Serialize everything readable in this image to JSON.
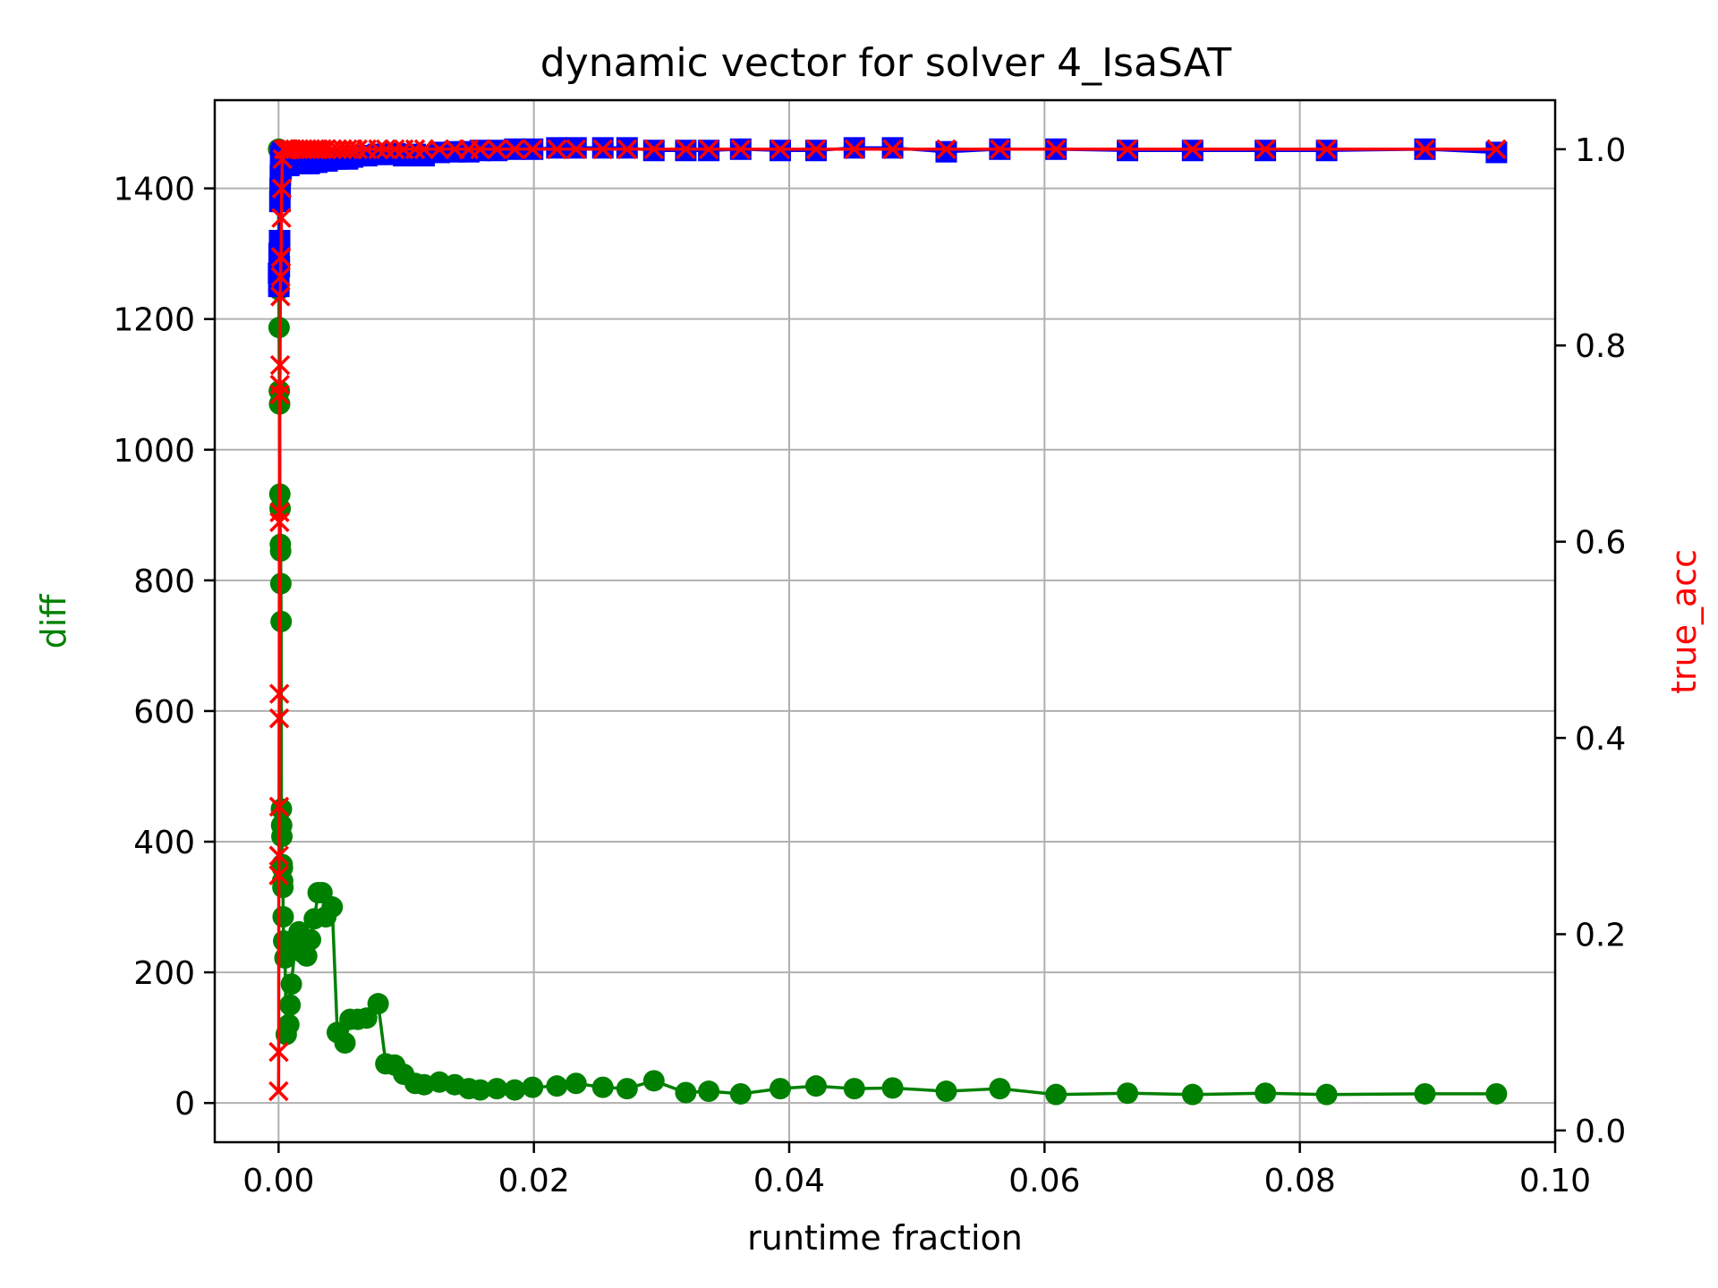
{
  "chart_data": {
    "type": "line",
    "title": "dynamic vector for solver 4_IsaSAT",
    "xlabel": "runtime fraction",
    "ylabel_left": "diff",
    "ylabel_right": "true_acc",
    "xlim": [
      -0.005,
      0.1
    ],
    "ylim_left": [
      -60,
      1535
    ],
    "ylim_right": [
      -0.012,
      1.05
    ],
    "x_ticks": [
      "0.00",
      "0.02",
      "0.04",
      "0.06",
      "0.08",
      "0.10"
    ],
    "y_ticks_left": [
      "0",
      "200",
      "400",
      "600",
      "800",
      "1000",
      "1200",
      "1400"
    ],
    "y_ticks_right": [
      "0.0",
      "0.2",
      "0.4",
      "0.6",
      "0.8",
      "1.0"
    ],
    "grid": true,
    "colors": {
      "diff": "#008000",
      "second": "#0000ff",
      "true_acc": "#ff0000"
    },
    "series": [
      {
        "axis": "left",
        "marker": "circle",
        "color": "#008000",
        "x": [
          0,
          2e-05,
          4e-05,
          6e-05,
          8e-05,
          0.0001,
          0.00012,
          0.00014,
          0.00016,
          0.00018,
          0.0002,
          0.00022,
          0.00024,
          0.00026,
          0.00028,
          0.0003,
          0.00032,
          0.00034,
          0.00036,
          0.0004,
          0.0005,
          0.0006,
          0.0008,
          0.0009,
          0.001,
          0.0013,
          0.0016,
          0.0019,
          0.0022,
          0.0025,
          0.0028,
          0.0031,
          0.0034,
          0.0037,
          0.0042,
          0.0046,
          0.0052,
          0.0056,
          0.0062,
          0.0069,
          0.0078,
          0.0084,
          0.0091,
          0.0098,
          0.0107,
          0.0114,
          0.0126,
          0.0138,
          0.0149,
          0.0158,
          0.0171,
          0.0185,
          0.0199,
          0.0218,
          0.0233,
          0.0254,
          0.0273,
          0.0294,
          0.0319,
          0.0337,
          0.0362,
          0.0393,
          0.0421,
          0.0451,
          0.0481,
          0.0523,
          0.0565,
          0.0609,
          0.0665,
          0.0716,
          0.0773,
          0.0821,
          0.0898,
          0.0954
        ],
        "y": [
          1460,
          1245,
          1187,
          1090,
          1070,
          932,
          910,
          855,
          845,
          795,
          737,
          450,
          425,
          408,
          365,
          360,
          340,
          330,
          285,
          248,
          222,
          105,
          120,
          150,
          182,
          240,
          262,
          230,
          225,
          250,
          282,
          322,
          322,
          285,
          300,
          108,
          92,
          128,
          128,
          130,
          152,
          60,
          58,
          44,
          30,
          28,
          32,
          28,
          22,
          20,
          22,
          20,
          24,
          26,
          30,
          24,
          22,
          34,
          16,
          18,
          14,
          22,
          26,
          22,
          23,
          18,
          22,
          13,
          15,
          13,
          15,
          13,
          14,
          14
        ]
      },
      {
        "axis": "left",
        "marker": "square",
        "color": "#0000ff",
        "x": [
          0,
          2e-05,
          4e-05,
          6e-05,
          8e-05,
          0.0001,
          0.00012,
          0.00014,
          0.00016,
          0.00018,
          0.0002,
          0.0003,
          0.0004,
          0.0005,
          0.0006,
          0.0008,
          0.001,
          0.0012,
          0.0015,
          0.0018,
          0.0021,
          0.0024,
          0.0027,
          0.003,
          0.0034,
          0.0038,
          0.0042,
          0.0046,
          0.005,
          0.0054,
          0.0058,
          0.0062,
          0.0069,
          0.0078,
          0.0084,
          0.0091,
          0.0098,
          0.0107,
          0.0114,
          0.0126,
          0.0138,
          0.0149,
          0.0158,
          0.0171,
          0.0185,
          0.0199,
          0.0218,
          0.0233,
          0.0254,
          0.0273,
          0.0294,
          0.0319,
          0.0337,
          0.0362,
          0.0393,
          0.0421,
          0.0451,
          0.0481,
          0.0523,
          0.0565,
          0.0609,
          0.0665,
          0.0716,
          0.0773,
          0.0821,
          0.0898,
          0.0954
        ],
        "y": [
          1270,
          1250,
          1300,
          1280,
          1320,
          1380,
          1400,
          1420,
          1440,
          1450,
          1430,
          1455,
          1440,
          1445,
          1450,
          1435,
          1440,
          1445,
          1440,
          1438,
          1440,
          1438,
          1440,
          1440,
          1442,
          1442,
          1445,
          1445,
          1446,
          1445,
          1448,
          1450,
          1450,
          1452,
          1452,
          1453,
          1450,
          1452,
          1450,
          1455,
          1456,
          1456,
          1458,
          1458,
          1460,
          1460,
          1462,
          1462,
          1462,
          1462,
          1458,
          1458,
          1458,
          1460,
          1458,
          1458,
          1462,
          1462,
          1456,
          1460,
          1460,
          1458,
          1458,
          1458,
          1458,
          1460,
          1455
        ]
      },
      {
        "axis": "right",
        "marker": "x",
        "color": "#ff0000",
        "x": [
          0,
          1e-05,
          2e-05,
          3e-05,
          4e-05,
          5e-05,
          6e-05,
          7e-05,
          8e-05,
          9e-05,
          0.0001,
          0.00012,
          0.00014,
          0.00016,
          0.00018,
          0.0002,
          0.00022,
          0.00025,
          0.0003,
          0.0004,
          0.0005,
          0.0006,
          0.0007,
          0.0008,
          0.001,
          0.0013,
          0.0016,
          0.0019,
          0.0022,
          0.0025,
          0.0028,
          0.0031,
          0.0034,
          0.0037,
          0.0042,
          0.0046,
          0.005,
          0.0054,
          0.0058,
          0.0062,
          0.0069,
          0.0078,
          0.0084,
          0.0091,
          0.0098,
          0.0107,
          0.0114,
          0.0126,
          0.0138,
          0.0149,
          0.0158,
          0.0171,
          0.0185,
          0.0199,
          0.0218,
          0.0233,
          0.0254,
          0.0273,
          0.0294,
          0.0319,
          0.0337,
          0.0362,
          0.0393,
          0.0421,
          0.0451,
          0.0481,
          0.0523,
          0.0565,
          0.0609,
          0.0665,
          0.0716,
          0.0773,
          0.0821,
          0.0898,
          0.0954
        ],
        "y": [
          0.04,
          0.08,
          0.26,
          0.28,
          0.33,
          0.42,
          0.445,
          0.62,
          0.63,
          0.75,
          0.76,
          0.78,
          0.85,
          0.87,
          0.89,
          0.89,
          0.93,
          0.96,
          0.99,
          1.0,
          1.0,
          1.0,
          1.0,
          1.0,
          1.0,
          1.0,
          1.0,
          1.0,
          1.0,
          1.0,
          1.0,
          1.0,
          1.0,
          1.0,
          1.0,
          1.0,
          1.0,
          1.0,
          1.0,
          1.0,
          1.0,
          1.0,
          1.0,
          1.0,
          1.0,
          1.0,
          1.0,
          1.0,
          1.0,
          1.0,
          1.0,
          1.0,
          1.0,
          1.0,
          1.0,
          1.0,
          1.0,
          1.0,
          1.0,
          1.0,
          1.0,
          1.0,
          1.0,
          1.0,
          1.0,
          1.0,
          1.0,
          1.0,
          1.0,
          1.0,
          1.0,
          1.0,
          1.0,
          1.0,
          1.0
        ]
      }
    ]
  }
}
